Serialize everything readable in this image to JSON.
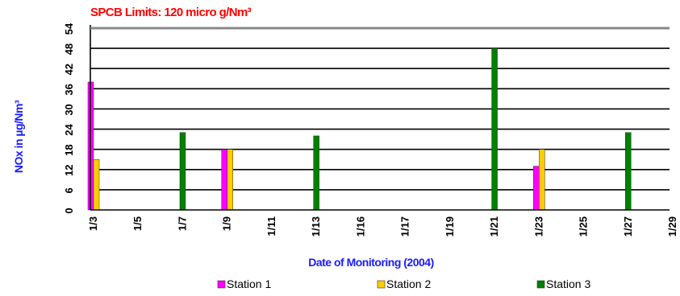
{
  "chart_data": {
    "type": "bar",
    "title": "SPCB Limits: 120 micro g/Nm³",
    "xlabel": "Date of Monitoring (2004)",
    "ylabel": "NOx in µg/Nm³",
    "ylim": [
      0,
      54
    ],
    "yticks": [
      0,
      6,
      12,
      18,
      24,
      30,
      36,
      42,
      48,
      54
    ],
    "grid": "horizontal",
    "legend_position": "bottom",
    "categories": [
      "1/3",
      "1/5",
      "1/7",
      "1/9",
      "1/11",
      "1/13",
      "1/16",
      "1/17",
      "1/19",
      "1/21",
      "1/23",
      "1/25",
      "1/27",
      "1/29"
    ],
    "series": [
      {
        "name": "Station 1",
        "color": "#ff00ff",
        "values": [
          38,
          null,
          null,
          18,
          null,
          null,
          null,
          null,
          null,
          null,
          13,
          null,
          null,
          null
        ]
      },
      {
        "name": "Station 2",
        "color": "#ffcc00",
        "values": [
          15,
          null,
          null,
          18,
          null,
          null,
          null,
          null,
          null,
          null,
          18,
          null,
          null,
          null
        ]
      },
      {
        "name": "Station 3",
        "color": "#008000",
        "values": [
          null,
          null,
          23,
          null,
          null,
          22,
          null,
          null,
          null,
          48,
          null,
          null,
          23,
          null
        ]
      }
    ]
  }
}
